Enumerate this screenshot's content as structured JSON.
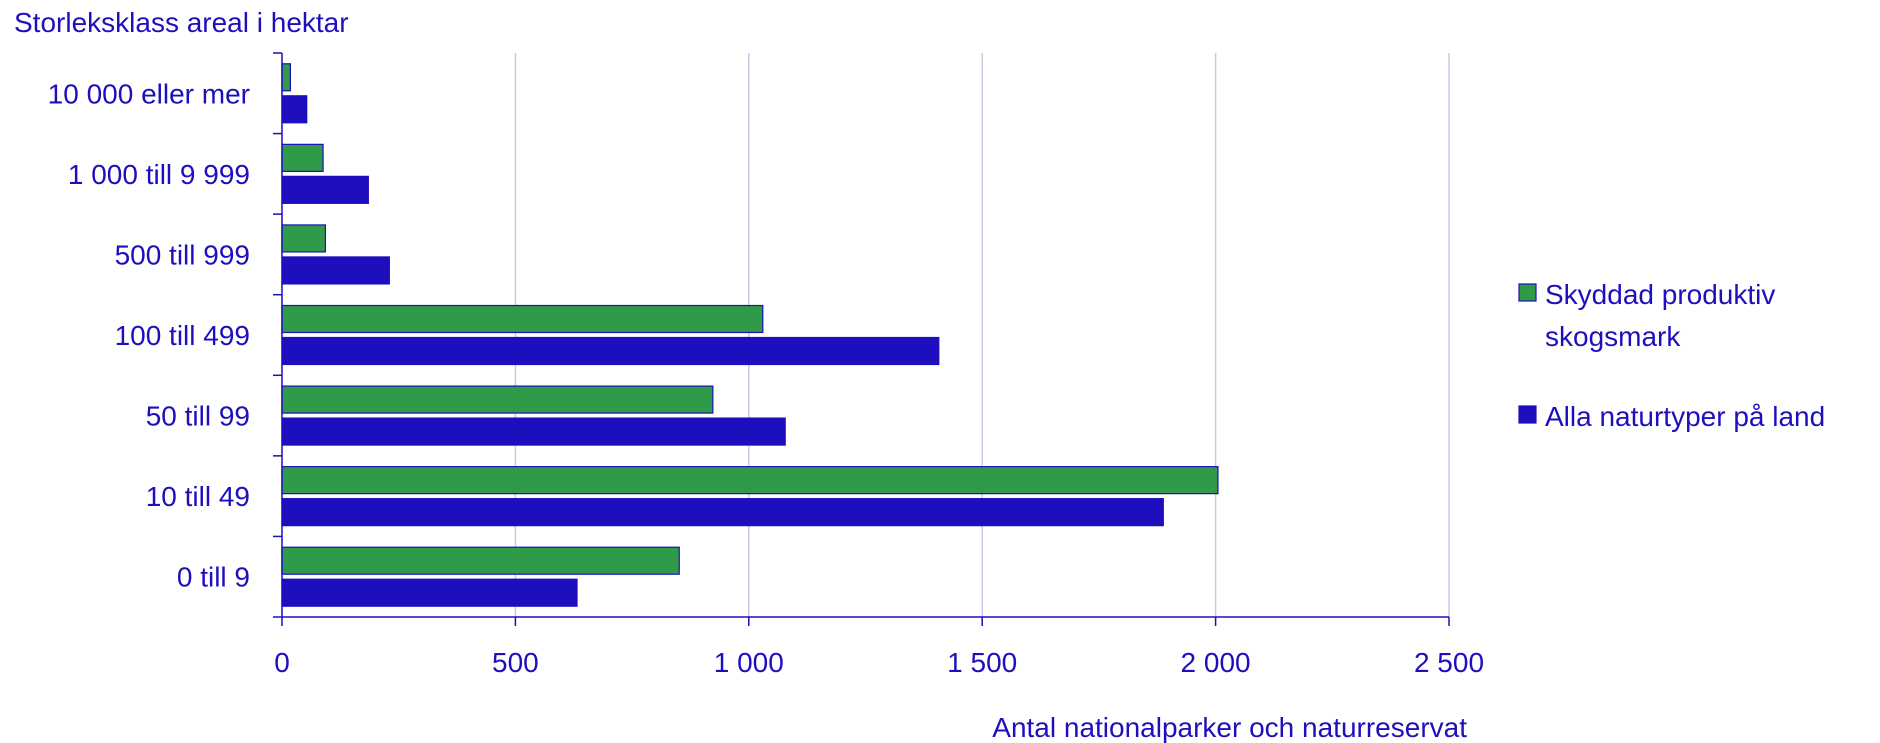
{
  "chart_data": {
    "type": "bar",
    "orientation": "horizontal",
    "ylabel": "Storleksklass areal i hektar",
    "xlabel": "Antal nationalparker och naturreservat",
    "categories": [
      "10 000 eller mer",
      "1 000 till 9 999",
      "500 till 999",
      "100 till 499",
      "50 till 99",
      "10 till 49",
      "0 till 9"
    ],
    "series": [
      {
        "name": "Skyddad produktiv skogsmark",
        "legend_lines": [
          "Skyddad produktiv",
          "skogsmark"
        ],
        "color": "#2f9a47",
        "values": [
          18,
          88,
          93,
          1030,
          923,
          2005,
          851
        ]
      },
      {
        "name": "Alla naturtyper på land",
        "legend_lines": [
          "Alla naturtyper på land"
        ],
        "color": "#1e0fbe",
        "values": [
          53,
          185,
          230,
          1407,
          1078,
          1888,
          632
        ]
      }
    ],
    "xlim": [
      0,
      2500
    ],
    "xticks": [
      0,
      500,
      1000,
      1500,
      2000,
      2500
    ],
    "xtick_labels": [
      "0",
      "500",
      "1 000",
      "1 500",
      "2 000",
      "2 500"
    ],
    "grid": "vertical",
    "legend_position": "right"
  }
}
